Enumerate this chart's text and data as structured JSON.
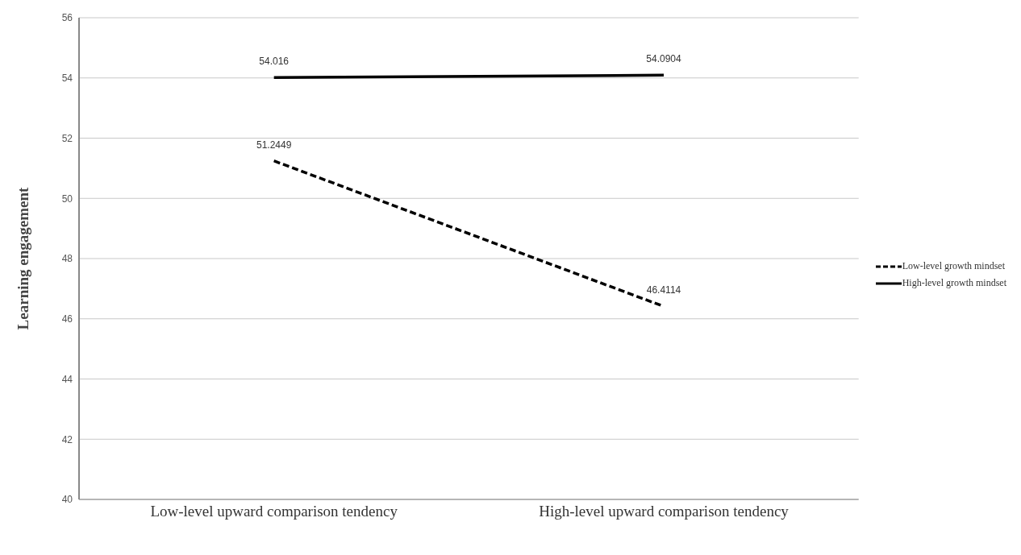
{
  "chart_data": {
    "type": "line",
    "ylabel": "Learning engagement",
    "categories": [
      "Low-level upward comparison tendency",
      "High-level upward comparison tendency"
    ],
    "series": [
      {
        "name": "Low-level growth mindset",
        "color": "#000000",
        "values": [
          51.2449,
          46.4114
        ],
        "line_style": "dashed"
      },
      {
        "name": "High-level growth mindset",
        "color": "#000000",
        "values": [
          54.016,
          54.0904
        ],
        "line_style": "solid"
      }
    ],
    "ylim": [
      40,
      56
    ],
    "yticks": [
      40,
      42,
      44,
      46,
      48,
      50,
      52,
      54,
      56
    ],
    "grid": "y",
    "legend": "right",
    "data_labels": true,
    "marker": "none"
  }
}
